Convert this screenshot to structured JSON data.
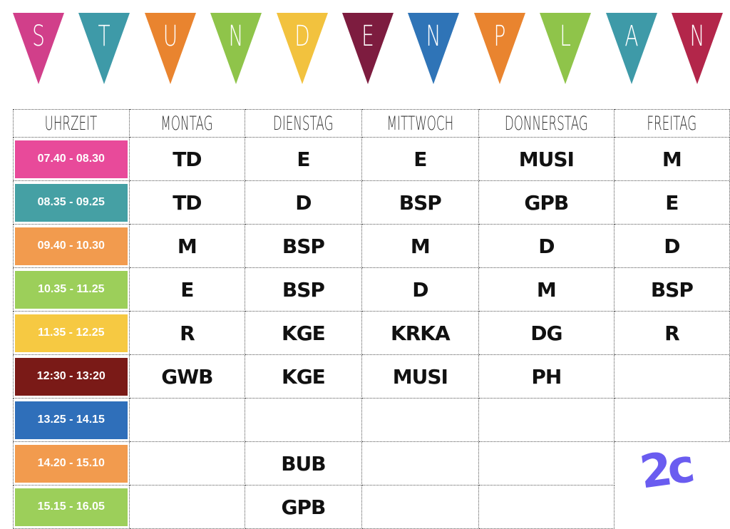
{
  "banner": {
    "pennants": [
      {
        "letter": "S",
        "color": "#d13f8a"
      },
      {
        "letter": "T",
        "color": "#3e9aa8"
      },
      {
        "letter": "U",
        "color": "#e9842f"
      },
      {
        "letter": "N",
        "color": "#8fc44a"
      },
      {
        "letter": "D",
        "color": "#f2c23e"
      },
      {
        "letter": "E",
        "color": "#7d1c3f"
      },
      {
        "letter": "N",
        "color": "#2f74b7"
      },
      {
        "letter": "P",
        "color": "#e9842f"
      },
      {
        "letter": "L",
        "color": "#8fc44a"
      },
      {
        "letter": "A",
        "color": "#3e9aa8"
      },
      {
        "letter": "N",
        "color": "#b3264a"
      }
    ]
  },
  "table": {
    "headers": [
      "Uhrzeit",
      "Montag",
      "Dienstag",
      "Mittwoch",
      "Donnerstag",
      "Freitag"
    ],
    "rows": [
      {
        "time": "07.40 - 08.30",
        "color": "#e84a9a",
        "cells": [
          "TD",
          "E",
          "E",
          "MUSI",
          "M"
        ]
      },
      {
        "time": "08.35 - 09.25",
        "color": "#45a0a4",
        "cells": [
          "TD",
          "D",
          "BSP",
          "GPB",
          "E"
        ]
      },
      {
        "time": "09.40 - 10.30",
        "color": "#f29b4e",
        "cells": [
          "M",
          "BSP",
          "M",
          "D",
          "D"
        ]
      },
      {
        "time": "10.35 - 11.25",
        "color": "#9ccf5a",
        "cells": [
          "E",
          "BSP",
          "D",
          "M",
          "BSP"
        ]
      },
      {
        "time": "11.35 - 12.25",
        "color": "#f6c942",
        "cells": [
          "R",
          "KGE",
          "KRKA",
          "DG",
          "R"
        ]
      },
      {
        "time": "12:30 - 13:20",
        "color": "#7a1a17",
        "cells": [
          "GWB",
          "KGE",
          "MUSI",
          "PH",
          ""
        ]
      },
      {
        "time": "13.25 - 14.15",
        "color": "#2f6fba",
        "cells": [
          "",
          "",
          "",
          "",
          ""
        ]
      },
      {
        "time": "14.20 - 15.10",
        "color": "#f29b4e",
        "cells": [
          "",
          "BUB",
          "",
          "",
          ""
        ]
      },
      {
        "time": "15.15 - 16.05",
        "color": "#9ccf5a",
        "cells": [
          "",
          "GPB",
          "",
          "",
          ""
        ]
      }
    ]
  },
  "class_label": "2c"
}
